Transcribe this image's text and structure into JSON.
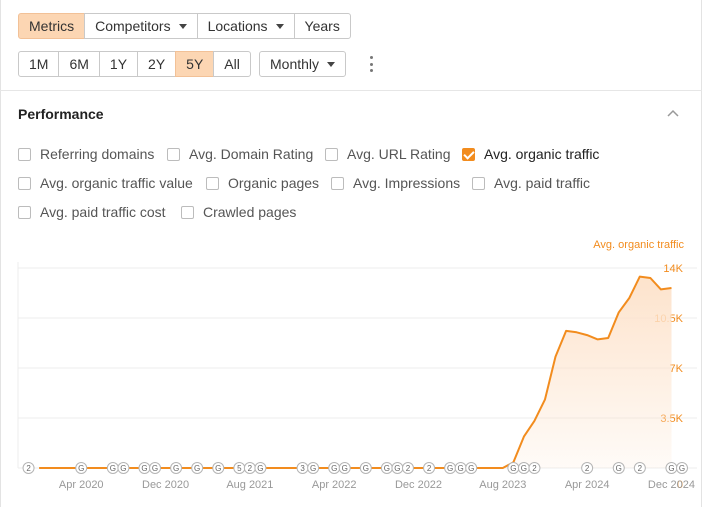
{
  "toolbar": {
    "view_tabs": [
      {
        "label": "Metrics",
        "active": true,
        "dropdown": false
      },
      {
        "label": "Competitors",
        "active": false,
        "dropdown": true
      },
      {
        "label": "Locations",
        "active": false,
        "dropdown": true
      },
      {
        "label": "Years",
        "active": false,
        "dropdown": false
      }
    ],
    "ranges": [
      {
        "label": "1M",
        "active": false
      },
      {
        "label": "6M",
        "active": false
      },
      {
        "label": "1Y",
        "active": false
      },
      {
        "label": "2Y",
        "active": false
      },
      {
        "label": "5Y",
        "active": true
      },
      {
        "label": "All",
        "active": false
      }
    ],
    "interval": "Monthly",
    "more_icon": "kebab-icon"
  },
  "performance": {
    "title": "Performance",
    "collapse_icon": "chevron-up-icon",
    "metrics": [
      {
        "label": "Referring domains",
        "checked": false
      },
      {
        "label": "Avg. Domain Rating",
        "checked": false
      },
      {
        "label": "Avg. URL Rating",
        "checked": false
      },
      {
        "label": "Avg. organic traffic",
        "checked": true
      },
      {
        "label": "Avg. organic traffic value",
        "checked": false
      },
      {
        "label": "Organic pages",
        "checked": false
      },
      {
        "label": "Avg. Impressions",
        "checked": false
      },
      {
        "label": "Avg. paid traffic",
        "checked": false
      },
      {
        "label": "Avg. paid traffic cost",
        "checked": false
      },
      {
        "label": "Crawled pages",
        "checked": false
      }
    ]
  },
  "colors": {
    "accent": "#f28c1e",
    "active_button": "#fcd6b3",
    "area_fill": "#fde3cc"
  },
  "chart_data": {
    "type": "area",
    "series": [
      {
        "name": "Avg. organic traffic",
        "points": [
          [
            "2019-12",
            0
          ],
          [
            "2020-06",
            0
          ],
          [
            "2020-12",
            0
          ],
          [
            "2021-06",
            0
          ],
          [
            "2021-12",
            0
          ],
          [
            "2022-06",
            0
          ],
          [
            "2022-12",
            0
          ],
          [
            "2023-06",
            0
          ],
          [
            "2023-08",
            0
          ],
          [
            "2023-09",
            400
          ],
          [
            "2023-10",
            2200
          ],
          [
            "2023-11",
            3300
          ],
          [
            "2023-12",
            4800
          ],
          [
            "2024-01",
            7800
          ],
          [
            "2024-02",
            9600
          ],
          [
            "2024-03",
            9500
          ],
          [
            "2024-04",
            9300
          ],
          [
            "2024-05",
            9000
          ],
          [
            "2024-06",
            9100
          ],
          [
            "2024-07",
            10900
          ],
          [
            "2024-08",
            11900
          ],
          [
            "2024-09",
            13400
          ],
          [
            "2024-10",
            13300
          ],
          [
            "2024-11",
            12500
          ],
          [
            "2024-12",
            12600
          ]
        ]
      }
    ],
    "x_ticks": [
      "Apr 2020",
      "Dec 2020",
      "Aug 2021",
      "Apr 2022",
      "Dec 2022",
      "Aug 2023",
      "Apr 2024",
      "Dec 2024"
    ],
    "x_tick_dates": [
      "2020-04",
      "2020-12",
      "2021-08",
      "2022-04",
      "2022-12",
      "2023-08",
      "2024-04",
      "2024-12"
    ],
    "xlim": [
      "2019-10",
      "2025-01"
    ],
    "y_ticks": [
      "0",
      "3.5K",
      "7K",
      "10.5K",
      "14K"
    ],
    "y_tick_values": [
      0,
      3500,
      7000,
      10500,
      14000
    ],
    "ylim": [
      0,
      14000
    ],
    "axis_side": "right",
    "grid": true,
    "legend": "top-right",
    "annotations": [
      {
        "date": "2019-11",
        "label": "2"
      },
      {
        "date": "2020-04",
        "label": "G"
      },
      {
        "date": "2020-07",
        "label": "G"
      },
      {
        "date": "2020-08",
        "label": "G"
      },
      {
        "date": "2020-10",
        "label": "G"
      },
      {
        "date": "2020-11",
        "label": "G"
      },
      {
        "date": "2021-01",
        "label": "G"
      },
      {
        "date": "2021-03",
        "label": "G"
      },
      {
        "date": "2021-05",
        "label": "G"
      },
      {
        "date": "2021-07",
        "label": "5"
      },
      {
        "date": "2021-08",
        "label": "2"
      },
      {
        "date": "2021-09",
        "label": "G"
      },
      {
        "date": "2022-01",
        "label": "3"
      },
      {
        "date": "2022-02",
        "label": "G"
      },
      {
        "date": "2022-04",
        "label": "G"
      },
      {
        "date": "2022-05",
        "label": "G"
      },
      {
        "date": "2022-07",
        "label": "G"
      },
      {
        "date": "2022-09",
        "label": "G"
      },
      {
        "date": "2022-10",
        "label": "G"
      },
      {
        "date": "2022-11",
        "label": "2"
      },
      {
        "date": "2023-01",
        "label": "2"
      },
      {
        "date": "2023-03",
        "label": "G"
      },
      {
        "date": "2023-04",
        "label": "G"
      },
      {
        "date": "2023-05",
        "label": "G"
      },
      {
        "date": "2023-09",
        "label": "G"
      },
      {
        "date": "2023-10",
        "label": "G"
      },
      {
        "date": "2023-11",
        "label": "2"
      },
      {
        "date": "2024-04",
        "label": "2"
      },
      {
        "date": "2024-07",
        "label": "G"
      },
      {
        "date": "2024-09",
        "label": "2"
      },
      {
        "date": "2024-12",
        "label": "G"
      },
      {
        "date": "2025-01",
        "label": "G"
      }
    ]
  }
}
